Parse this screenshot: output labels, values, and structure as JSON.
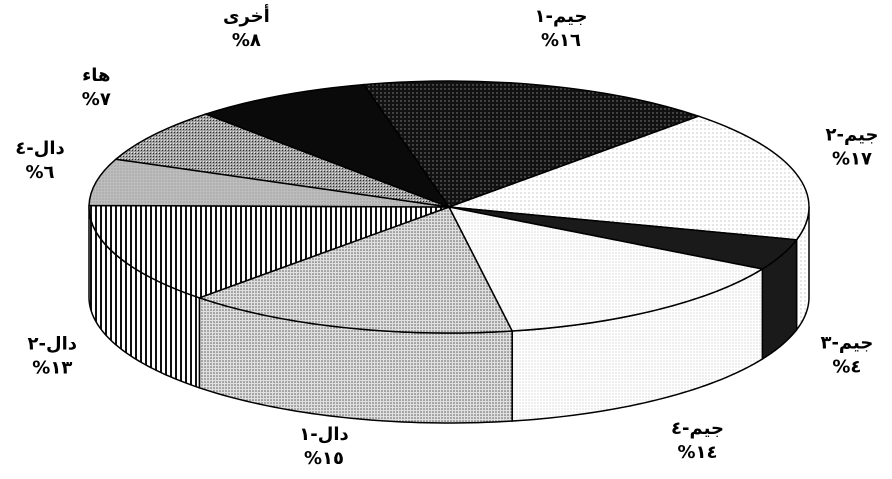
{
  "chart_data": {
    "type": "pie",
    "title": "",
    "style": "3d-pie",
    "slices": [
      {
        "name": "جيم-١",
        "value": 16,
        "value_label": "%١٦",
        "pattern": "dots-dark"
      },
      {
        "name": "جيم-٢",
        "value": 17,
        "value_label": "%١٧",
        "pattern": "dots-light"
      },
      {
        "name": "جيم-٣",
        "value": 4,
        "value_label": "%٤",
        "pattern": "solid-dark"
      },
      {
        "name": "جيم-٤",
        "value": 14,
        "value_label": "%١٤",
        "pattern": "dots-fine"
      },
      {
        "name": "دال-١",
        "value": 15,
        "value_label": "%١٥",
        "pattern": "dots-medium"
      },
      {
        "name": "دال-٢",
        "value": 13,
        "value_label": "%١٣",
        "pattern": "vertical-lines"
      },
      {
        "name": "دال-٤",
        "value": 6,
        "value_label": "%٦",
        "pattern": "dots-grey"
      },
      {
        "name": "هاء",
        "value": 7,
        "value_label": "%٧",
        "pattern": "crosshatch"
      },
      {
        "name": "أخرى",
        "value": 8,
        "value_label": "%٨",
        "pattern": "solid-black"
      }
    ]
  }
}
